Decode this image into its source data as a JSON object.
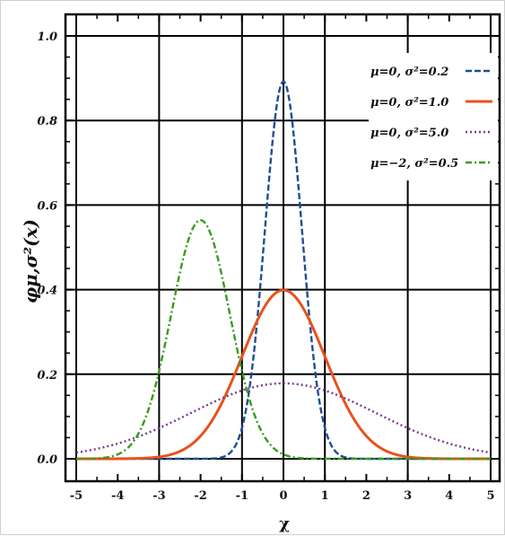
{
  "chart_data": {
    "type": "line",
    "xlabel": "χ",
    "ylabel": "φμ,σ²(x)",
    "xlim": [
      -5.0,
      5.0
    ],
    "ylim": [
      0.0,
      1.0
    ],
    "x_ticks": [
      "-5",
      "-4",
      "-3",
      "-2",
      "-1",
      "0",
      "1",
      "2",
      "3",
      "4",
      "5"
    ],
    "y_ticks": [
      "0.0",
      "0.2",
      "0.4",
      "0.6",
      "0.8",
      "1.0"
    ],
    "grid": true,
    "legend_position": "top-right",
    "series": [
      {
        "name": "μ=0,   σ²=0.2",
        "mu": 0,
        "variance": 0.2,
        "color": "#1f4e96",
        "dash": "dash",
        "x": [
          -5,
          -1.5,
          -1,
          -0.5,
          -0.25,
          0,
          0.25,
          0.5,
          1,
          1.5,
          5
        ],
        "y": [
          0,
          0.0033,
          0.0733,
          0.4839,
          0.774,
          0.8921,
          0.774,
          0.4839,
          0.0733,
          0.0033,
          0
        ]
      },
      {
        "name": "μ=0,   σ²=1.0",
        "mu": 0,
        "variance": 1.0,
        "color": "#e8521c",
        "dash": "solid",
        "x": [
          -5,
          -3,
          -2,
          -1,
          0,
          1,
          2,
          3,
          5
        ],
        "y": [
          0,
          0.0044,
          0.054,
          0.242,
          0.3989,
          0.242,
          0.054,
          0.0044,
          0
        ]
      },
      {
        "name": "μ=0,   σ²=5.0",
        "mu": 0,
        "variance": 5.0,
        "color": "#7a3b8f",
        "dash": "dot",
        "x": [
          -5,
          -4,
          -3,
          -2,
          -1,
          0,
          1,
          2,
          3,
          4,
          5
        ],
        "y": [
          0.0146,
          0.0363,
          0.0729,
          0.1196,
          0.1614,
          0.1784,
          0.1614,
          0.1196,
          0.0729,
          0.0363,
          0.0146
        ]
      },
      {
        "name": "μ=−2, σ²=0.5",
        "mu": -2,
        "variance": 0.5,
        "color": "#3a9a1e",
        "dash": "dashdot",
        "x": [
          -5,
          -4,
          -3,
          -2.5,
          -2,
          -1.5,
          -1,
          0,
          5
        ],
        "y": [
          0,
          0.0103,
          0.2076,
          0.4394,
          0.5642,
          0.4394,
          0.2076,
          0.0103,
          0
        ]
      }
    ]
  }
}
